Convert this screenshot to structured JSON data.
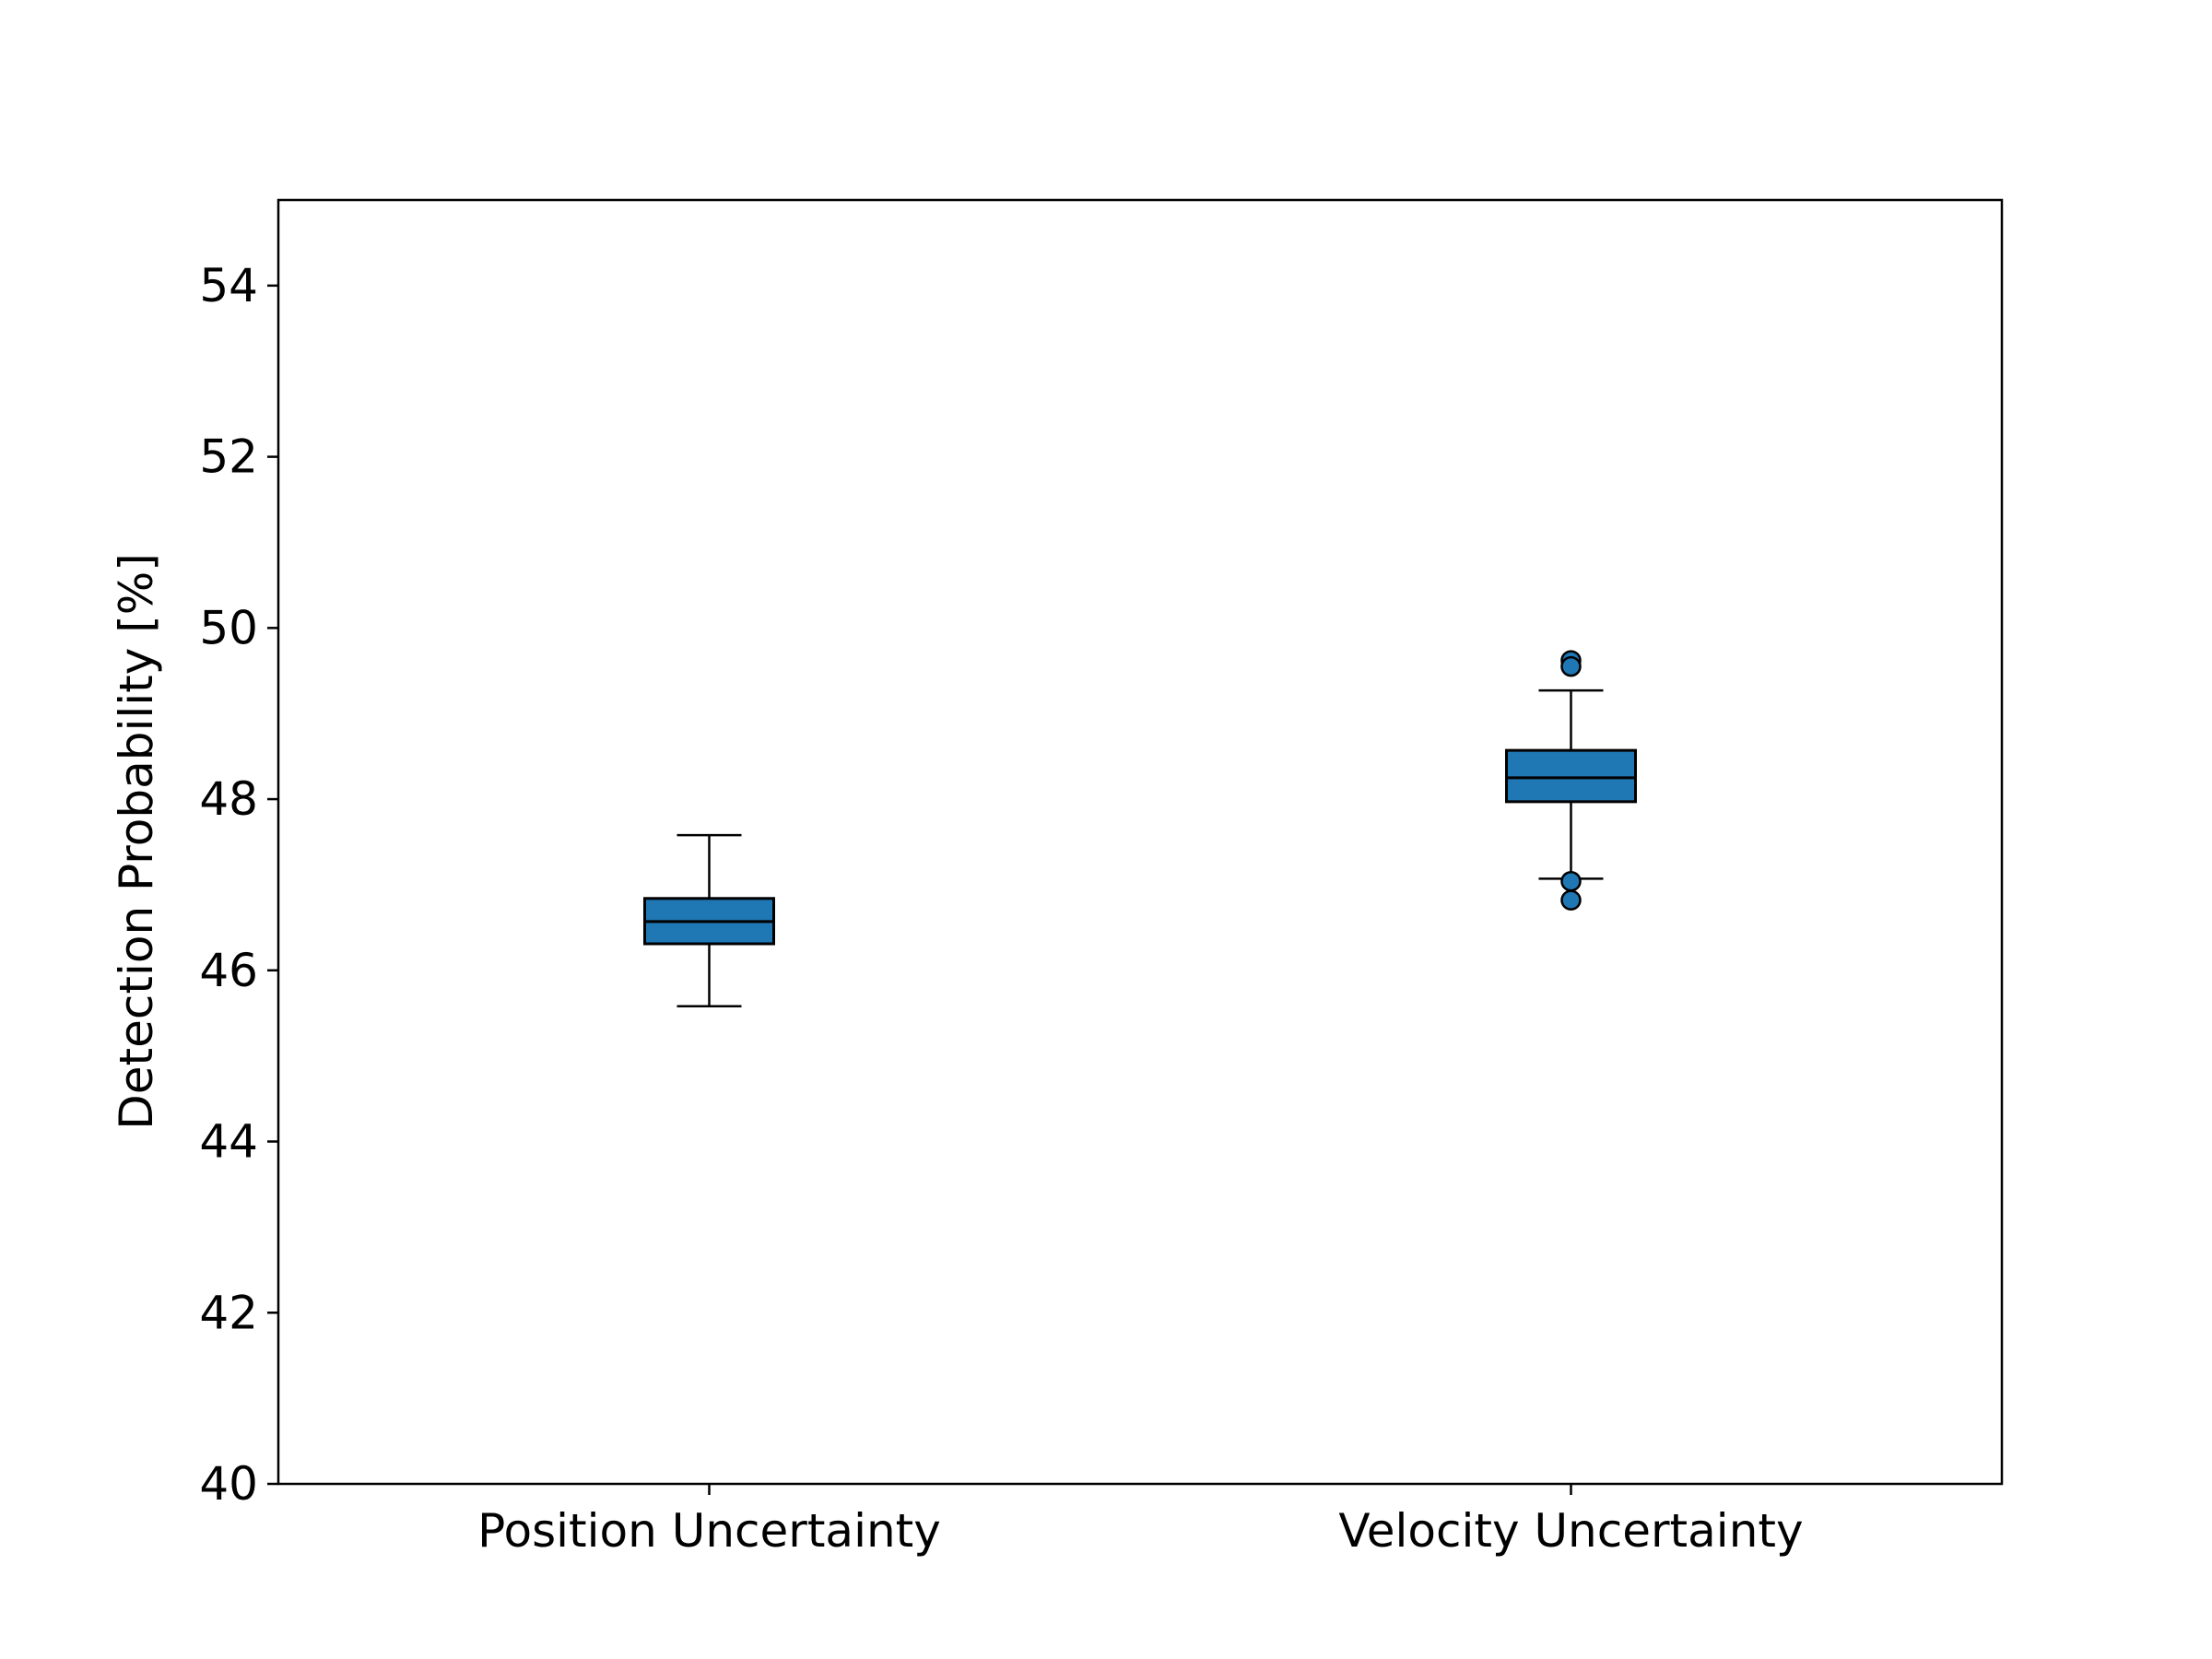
{
  "chart_data": {
    "type": "boxplot",
    "title": "",
    "xlabel": "",
    "ylabel": "Detection Probability [%]",
    "ylim": [
      40,
      55
    ],
    "yticks": [
      40,
      42,
      44,
      46,
      48,
      50,
      52,
      54
    ],
    "grid": false,
    "categories": [
      "Position Uncertainty",
      "Velocity Uncertainty"
    ],
    "boxes": [
      {
        "name": "Position Uncertainty",
        "whisker_low": 45.58,
        "q1": 46.31,
        "median": 46.57,
        "q3": 46.84,
        "whisker_high": 47.58,
        "outliers": []
      },
      {
        "name": "Velocity Uncertainty",
        "whisker_low": 47.07,
        "q1": 47.97,
        "median": 48.25,
        "q3": 48.57,
        "whisker_high": 49.27,
        "outliers": [
          49.62,
          49.55,
          47.04,
          46.82
        ]
      }
    ],
    "box_color": "#1f77b4",
    "edge_color": "#000000"
  }
}
